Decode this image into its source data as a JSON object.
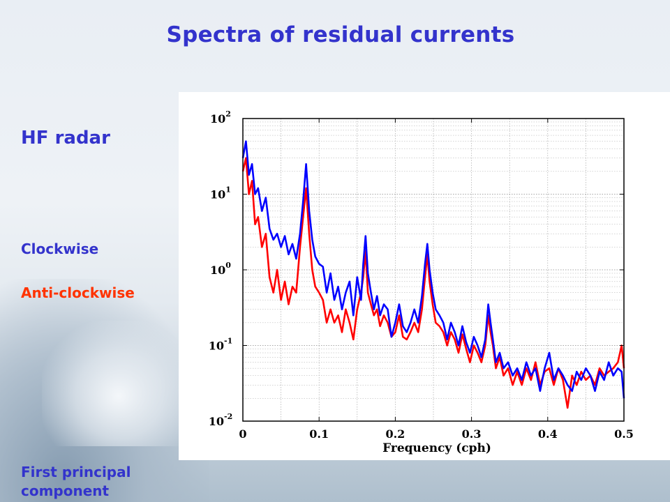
{
  "slide": {
    "title": "Spectra of residual currents",
    "label_source": "HF radar",
    "legend_clockwise": "Clockwise",
    "legend_anticlockwise": "Anti-clockwise",
    "label_component": "First principal component"
  },
  "colors": {
    "title": "#3333cc",
    "clockwise": "#0000ff",
    "anticlockwise": "#ff0000",
    "anticlockwise_label": "#ff3300"
  },
  "chart_data": {
    "type": "line",
    "title": "",
    "xlabel": "Frequency (cph)",
    "ylabel": "",
    "xlim": [
      0,
      0.5
    ],
    "ylim": [
      0.01,
      100
    ],
    "yscale": "log",
    "grid": true,
    "xticks": [
      "0",
      "0.1",
      "0.2",
      "0.3",
      "0.4",
      "0.5"
    ],
    "yticks": [
      "10^2",
      "10^1",
      "10^0",
      "10^-1",
      "10^-2"
    ],
    "series": [
      {
        "name": "Clockwise",
        "color": "#0000ff",
        "x": [
          0,
          0.004,
          0.008,
          0.012,
          0.016,
          0.02,
          0.025,
          0.03,
          0.035,
          0.04,
          0.045,
          0.05,
          0.055,
          0.06,
          0.065,
          0.07,
          0.075,
          0.079,
          0.083,
          0.087,
          0.091,
          0.095,
          0.1,
          0.105,
          0.11,
          0.115,
          0.12,
          0.125,
          0.13,
          0.135,
          0.14,
          0.145,
          0.15,
          0.155,
          0.158,
          0.161,
          0.164,
          0.168,
          0.172,
          0.176,
          0.18,
          0.185,
          0.19,
          0.195,
          0.2,
          0.205,
          0.21,
          0.215,
          0.22,
          0.225,
          0.23,
          0.235,
          0.239,
          0.242,
          0.245,
          0.249,
          0.253,
          0.258,
          0.263,
          0.268,
          0.273,
          0.278,
          0.283,
          0.288,
          0.293,
          0.298,
          0.303,
          0.308,
          0.313,
          0.318,
          0.322,
          0.325,
          0.328,
          0.332,
          0.337,
          0.342,
          0.348,
          0.354,
          0.36,
          0.366,
          0.372,
          0.378,
          0.384,
          0.39,
          0.396,
          0.402,
          0.408,
          0.414,
          0.42,
          0.426,
          0.432,
          0.438,
          0.444,
          0.45,
          0.456,
          0.462,
          0.468,
          0.474,
          0.48,
          0.486,
          0.492,
          0.497,
          0.5
        ],
        "values": [
          30,
          50,
          18,
          25,
          10,
          12,
          6,
          9,
          3.5,
          2.5,
          3,
          2,
          2.8,
          1.6,
          2.2,
          1.4,
          3,
          8,
          25,
          6,
          2.5,
          1.5,
          1.2,
          1.1,
          0.5,
          0.9,
          0.4,
          0.6,
          0.3,
          0.5,
          0.7,
          0.25,
          0.8,
          0.4,
          1.2,
          2.8,
          0.9,
          0.5,
          0.3,
          0.45,
          0.25,
          0.35,
          0.3,
          0.13,
          0.2,
          0.35,
          0.18,
          0.15,
          0.2,
          0.3,
          0.2,
          0.45,
          1.2,
          2.2,
          1.0,
          0.5,
          0.3,
          0.25,
          0.2,
          0.12,
          0.2,
          0.15,
          0.1,
          0.18,
          0.11,
          0.08,
          0.13,
          0.1,
          0.07,
          0.12,
          0.35,
          0.2,
          0.12,
          0.06,
          0.08,
          0.05,
          0.06,
          0.04,
          0.05,
          0.035,
          0.06,
          0.04,
          0.05,
          0.025,
          0.05,
          0.08,
          0.035,
          0.05,
          0.04,
          0.03,
          0.025,
          0.045,
          0.035,
          0.05,
          0.04,
          0.025,
          0.045,
          0.035,
          0.06,
          0.04,
          0.05,
          0.045,
          0.02
        ]
      },
      {
        "name": "Anti-clockwise",
        "color": "#ff0000",
        "x": [
          0,
          0.004,
          0.008,
          0.012,
          0.016,
          0.02,
          0.025,
          0.03,
          0.035,
          0.04,
          0.045,
          0.05,
          0.055,
          0.06,
          0.065,
          0.07,
          0.075,
          0.079,
          0.083,
          0.087,
          0.091,
          0.095,
          0.1,
          0.105,
          0.11,
          0.115,
          0.12,
          0.125,
          0.13,
          0.135,
          0.14,
          0.145,
          0.15,
          0.155,
          0.158,
          0.161,
          0.164,
          0.168,
          0.172,
          0.176,
          0.18,
          0.185,
          0.19,
          0.195,
          0.2,
          0.205,
          0.21,
          0.215,
          0.22,
          0.225,
          0.23,
          0.235,
          0.239,
          0.242,
          0.245,
          0.249,
          0.253,
          0.258,
          0.263,
          0.268,
          0.273,
          0.278,
          0.283,
          0.288,
          0.293,
          0.298,
          0.303,
          0.308,
          0.313,
          0.318,
          0.322,
          0.325,
          0.328,
          0.332,
          0.337,
          0.342,
          0.348,
          0.354,
          0.36,
          0.366,
          0.372,
          0.378,
          0.384,
          0.39,
          0.396,
          0.402,
          0.408,
          0.414,
          0.42,
          0.426,
          0.432,
          0.438,
          0.444,
          0.45,
          0.456,
          0.462,
          0.468,
          0.474,
          0.48,
          0.486,
          0.492,
          0.497,
          0.5
        ],
        "values": [
          20,
          30,
          10,
          15,
          4,
          5,
          2,
          3,
          0.8,
          0.5,
          1.0,
          0.4,
          0.7,
          0.35,
          0.6,
          0.5,
          2,
          5,
          12,
          3,
          1.0,
          0.6,
          0.5,
          0.4,
          0.2,
          0.3,
          0.2,
          0.25,
          0.15,
          0.3,
          0.2,
          0.12,
          0.3,
          0.5,
          0.8,
          1.8,
          0.5,
          0.35,
          0.25,
          0.3,
          0.18,
          0.25,
          0.2,
          0.13,
          0.15,
          0.25,
          0.13,
          0.12,
          0.15,
          0.2,
          0.15,
          0.3,
          0.8,
          1.6,
          0.7,
          0.35,
          0.2,
          0.18,
          0.15,
          0.1,
          0.15,
          0.12,
          0.08,
          0.14,
          0.09,
          0.06,
          0.1,
          0.08,
          0.06,
          0.1,
          0.25,
          0.15,
          0.1,
          0.05,
          0.07,
          0.04,
          0.05,
          0.03,
          0.045,
          0.03,
          0.05,
          0.035,
          0.06,
          0.03,
          0.045,
          0.05,
          0.03,
          0.05,
          0.035,
          0.015,
          0.04,
          0.03,
          0.045,
          0.035,
          0.04,
          0.03,
          0.05,
          0.04,
          0.045,
          0.05,
          0.06,
          0.1,
          0.05
        ]
      }
    ]
  }
}
